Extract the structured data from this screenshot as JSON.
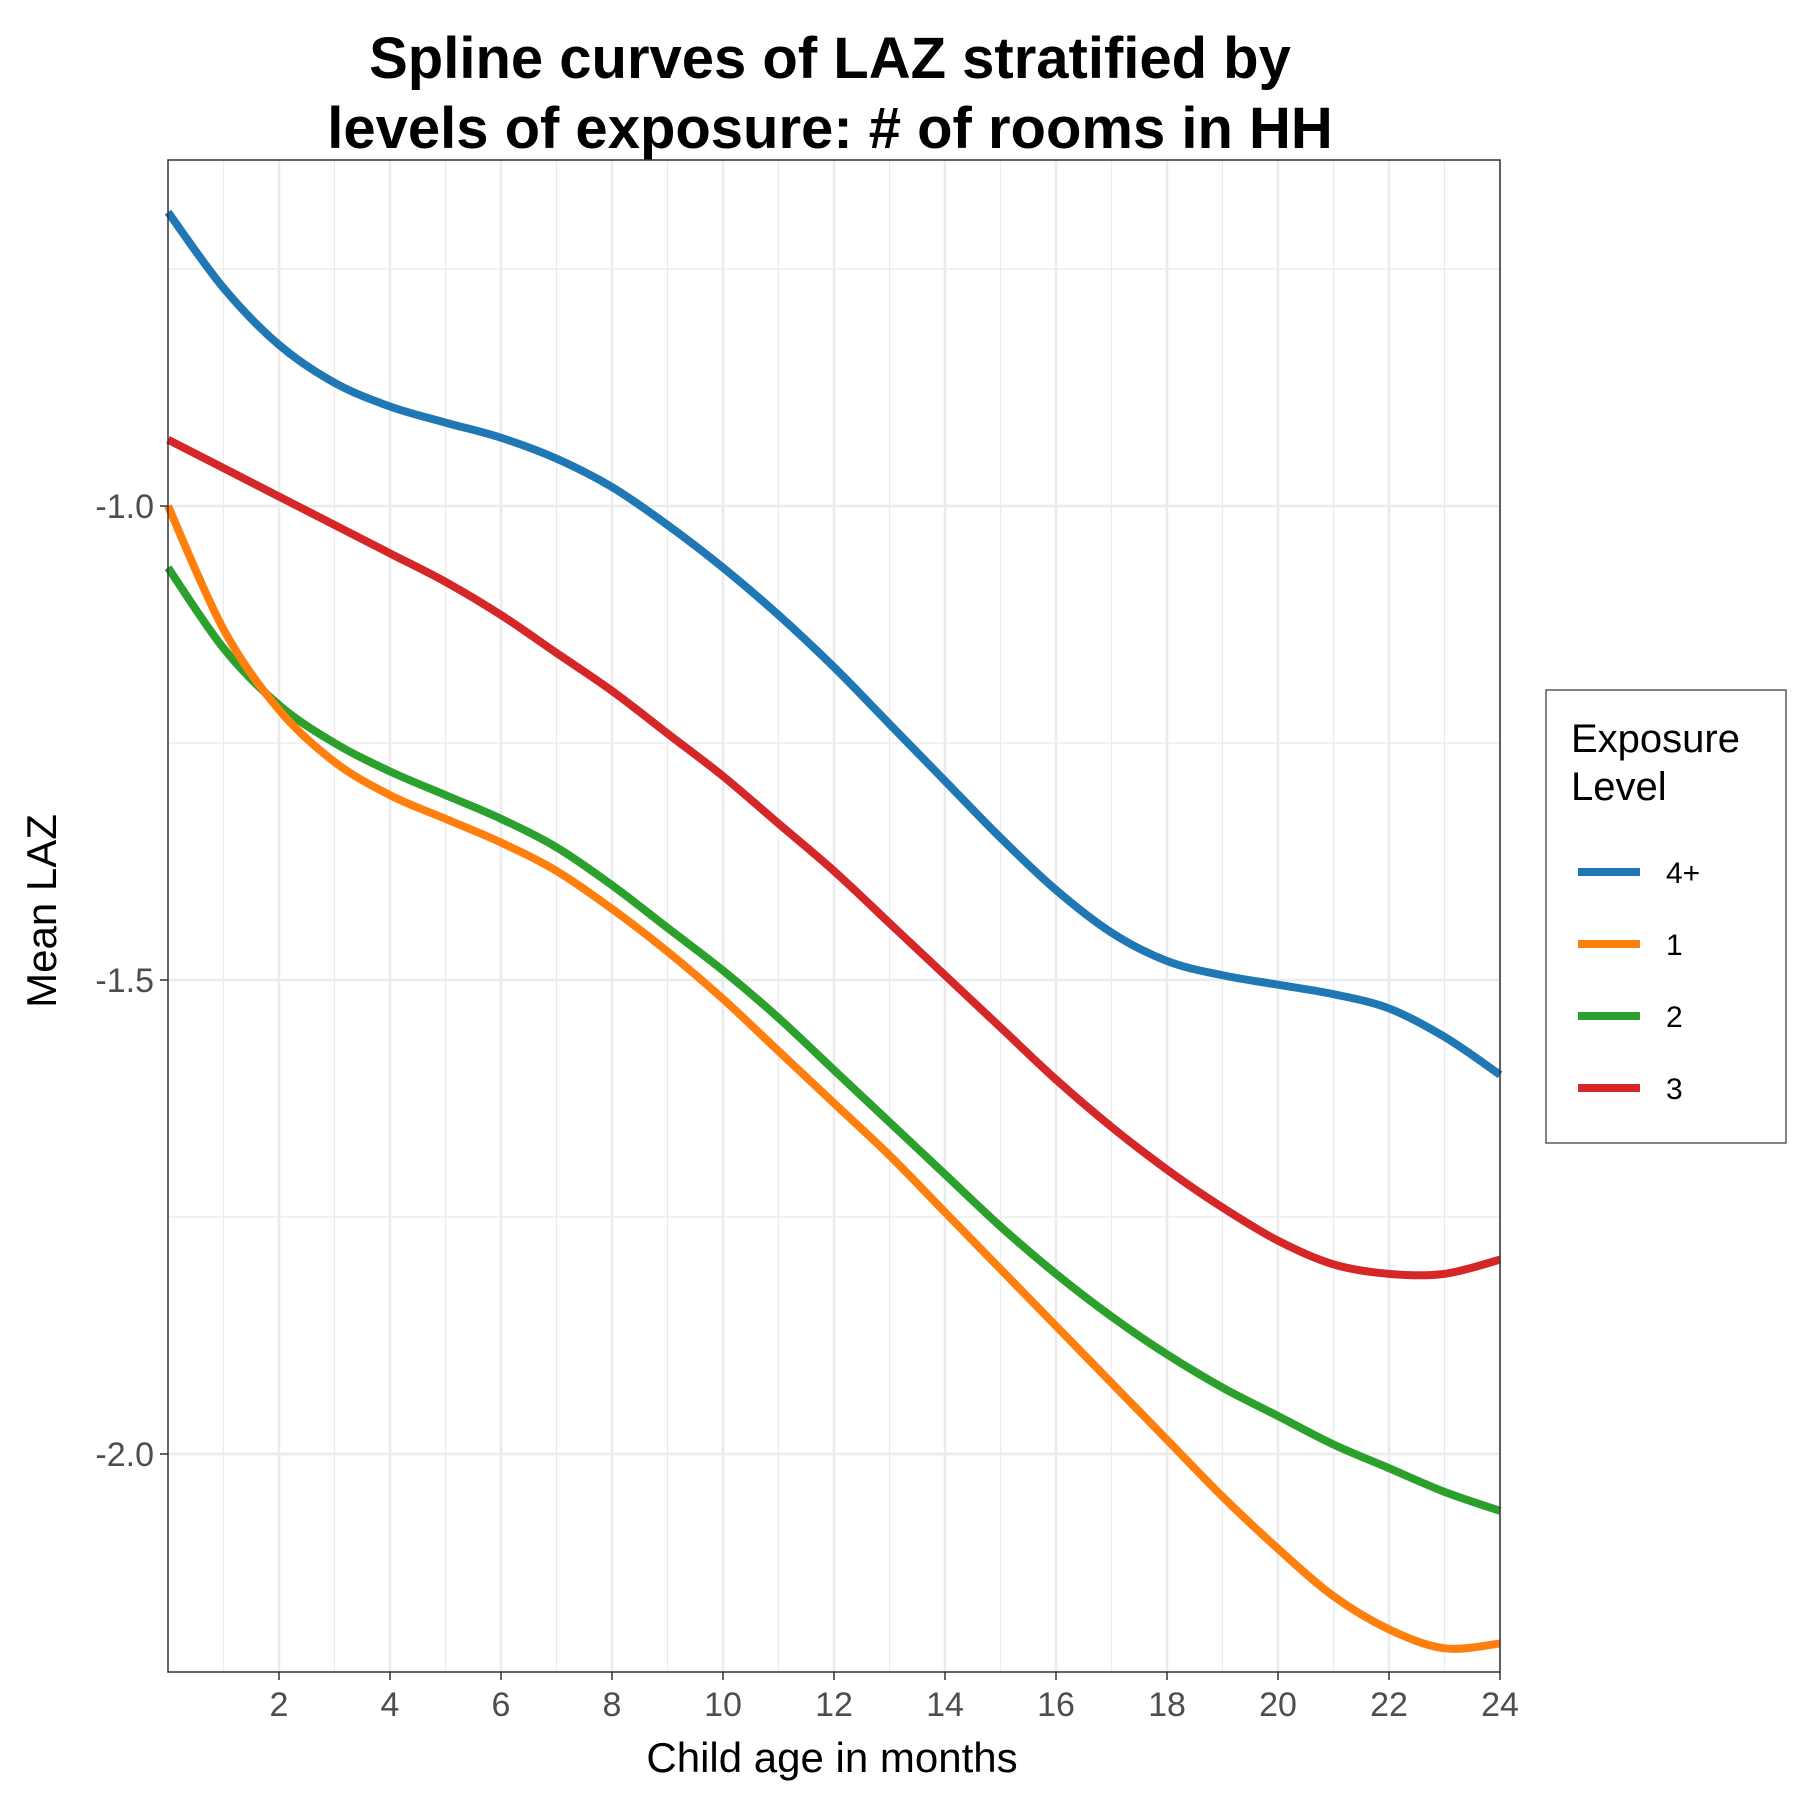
{
  "chart_data": {
    "type": "line",
    "title_lines": [
      "Spline curves of LAZ stratified by",
      "levels of exposure: # of rooms in HH"
    ],
    "xlabel": "Child age in months",
    "ylabel": "Mean LAZ",
    "xlim": [
      0,
      24
    ],
    "ylim": [
      -2.23,
      -0.635
    ],
    "x_ticks": [
      2,
      4,
      6,
      8,
      10,
      12,
      14,
      16,
      18,
      20,
      22,
      24
    ],
    "x_tick_labels": [
      "2",
      "4",
      "6",
      "8",
      "10",
      "12",
      "14",
      "16",
      "18",
      "20",
      "22",
      "24"
    ],
    "y_ticks": [
      -1.0,
      -1.5,
      -2.0
    ],
    "y_tick_labels": [
      "-1.0",
      "-1.5",
      "-2.0"
    ],
    "grid": true,
    "legend": {
      "title_lines": [
        "Exposure",
        "Level"
      ],
      "position": "right"
    },
    "x": [
      0,
      1,
      2,
      3,
      4,
      5,
      6,
      7,
      8,
      9,
      10,
      11,
      12,
      13,
      14,
      15,
      16,
      17,
      18,
      19,
      20,
      21,
      22,
      23,
      24
    ],
    "series": [
      {
        "name": "4+",
        "color": "#1f77b4",
        "values": [
          -0.69,
          -0.77,
          -0.83,
          -0.87,
          -0.895,
          -0.912,
          -0.928,
          -0.95,
          -0.98,
          -1.02,
          -1.065,
          -1.115,
          -1.17,
          -1.23,
          -1.29,
          -1.35,
          -1.405,
          -1.45,
          -1.48,
          -1.495,
          -1.505,
          -1.515,
          -1.53,
          -1.56,
          -1.6
        ]
      },
      {
        "name": "1",
        "color": "#ff7f0e",
        "values": [
          -1.0,
          -1.13,
          -1.215,
          -1.27,
          -1.305,
          -1.33,
          -1.355,
          -1.385,
          -1.425,
          -1.47,
          -1.52,
          -1.575,
          -1.63,
          -1.685,
          -1.745,
          -1.805,
          -1.865,
          -1.925,
          -1.985,
          -2.045,
          -2.1,
          -2.15,
          -2.185,
          -2.205,
          -2.2
        ]
      },
      {
        "name": "2",
        "color": "#2ca02c",
        "values": [
          -1.065,
          -1.15,
          -1.21,
          -1.25,
          -1.28,
          -1.305,
          -1.33,
          -1.36,
          -1.4,
          -1.445,
          -1.49,
          -1.54,
          -1.595,
          -1.65,
          -1.705,
          -1.76,
          -1.81,
          -1.855,
          -1.895,
          -1.93,
          -1.96,
          -1.99,
          -2.015,
          -2.04,
          -2.06
        ]
      },
      {
        "name": "3",
        "color": "#d62728",
        "values": [
          -0.93,
          -0.96,
          -0.99,
          -1.02,
          -1.05,
          -1.08,
          -1.115,
          -1.155,
          -1.195,
          -1.24,
          -1.285,
          -1.335,
          -1.385,
          -1.44,
          -1.495,
          -1.55,
          -1.605,
          -1.655,
          -1.7,
          -1.74,
          -1.775,
          -1.8,
          -1.81,
          -1.81,
          -1.795
        ]
      }
    ]
  }
}
